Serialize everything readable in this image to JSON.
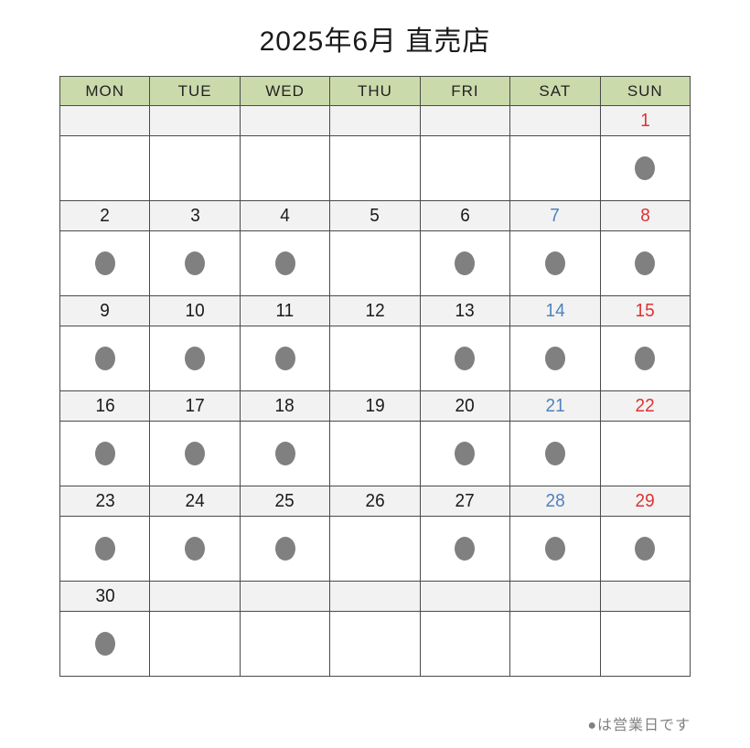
{
  "title": "2025年6月 直売店",
  "legend": "●は営業日です",
  "weekdays": [
    "MON",
    "TUE",
    "WED",
    "THU",
    "FRI",
    "SAT",
    "SUN"
  ],
  "weeks": [
    {
      "dates": [
        "",
        "",
        "",
        "",
        "",
        "",
        "1"
      ],
      "open": [
        false,
        false,
        false,
        false,
        false,
        false,
        true
      ]
    },
    {
      "dates": [
        "2",
        "3",
        "4",
        "5",
        "6",
        "7",
        "8"
      ],
      "open": [
        true,
        true,
        true,
        false,
        true,
        true,
        true
      ]
    },
    {
      "dates": [
        "9",
        "10",
        "11",
        "12",
        "13",
        "14",
        "15"
      ],
      "open": [
        true,
        true,
        true,
        false,
        true,
        true,
        true
      ]
    },
    {
      "dates": [
        "16",
        "17",
        "18",
        "19",
        "20",
        "21",
        "22"
      ],
      "open": [
        true,
        true,
        true,
        false,
        true,
        true,
        false
      ]
    },
    {
      "dates": [
        "23",
        "24",
        "25",
        "26",
        "27",
        "28",
        "29"
      ],
      "open": [
        true,
        true,
        true,
        false,
        true,
        true,
        true
      ]
    },
    {
      "dates": [
        "30",
        "",
        "",
        "",
        "",
        "",
        ""
      ],
      "open": [
        true,
        false,
        false,
        false,
        false,
        false,
        false
      ]
    }
  ],
  "colors": {
    "header_bg": "#cbdaab",
    "date_row_bg": "#f2f2f2",
    "cell_bg": "#ffffff",
    "border": "#4a4a4a",
    "text": "#1a1a1a",
    "saturday": "#4f81bd",
    "sunday": "#dd3333",
    "dot": "#808080",
    "legend": "#808080"
  }
}
